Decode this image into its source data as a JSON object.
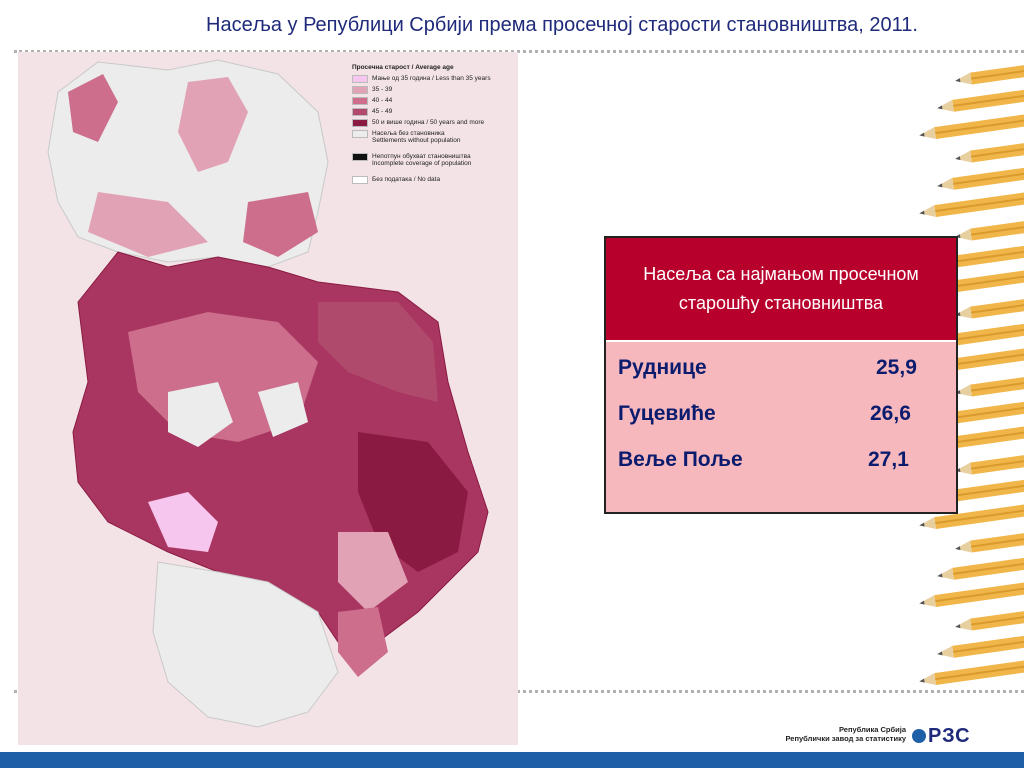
{
  "title": "Насеља у Републици Србији према просечној старости становништва, 2011.",
  "legend": {
    "title": "Просечна старост / Average age",
    "items": [
      {
        "label": "Мање од 35 година / Less than 35 years",
        "color": "#f7c6ef"
      },
      {
        "label": "35 - 39",
        "color": "#e1a2b6"
      },
      {
        "label": "40 - 44",
        "color": "#cc6e8c"
      },
      {
        "label": "45 - 49",
        "color": "#b04a6c"
      },
      {
        "label": "50 и више година / 50 years and more",
        "color": "#8a1a42"
      }
    ],
    "extra": [
      {
        "line1": "Насеља без становника",
        "line2": "Settlements without population",
        "color": "#ececec"
      },
      {
        "line1": "Непотпун обухват становништва",
        "line2": "Incomplete coverage of population",
        "color": "#111111"
      },
      {
        "line1": "Без података / No data",
        "line2": "",
        "color": "#ffffff"
      }
    ]
  },
  "table": {
    "header": "Насеља са најмањом просечном старошћу становништва",
    "rows": [
      {
        "name": "Руднице",
        "value": "25,9"
      },
      {
        "name": "Гуцевиће",
        "value": "26,6"
      },
      {
        "name": "Веље Поље",
        "value": "27,1"
      }
    ]
  },
  "footer": {
    "line1": "Република Србија",
    "line2": "Републички завод за статистику",
    "mark": "РЗС"
  },
  "colors": {
    "title": "#1f2a7a",
    "table_header": "#b8002c",
    "table_body": "#f7b8bd",
    "footer_bar": "#1f5fa8"
  }
}
